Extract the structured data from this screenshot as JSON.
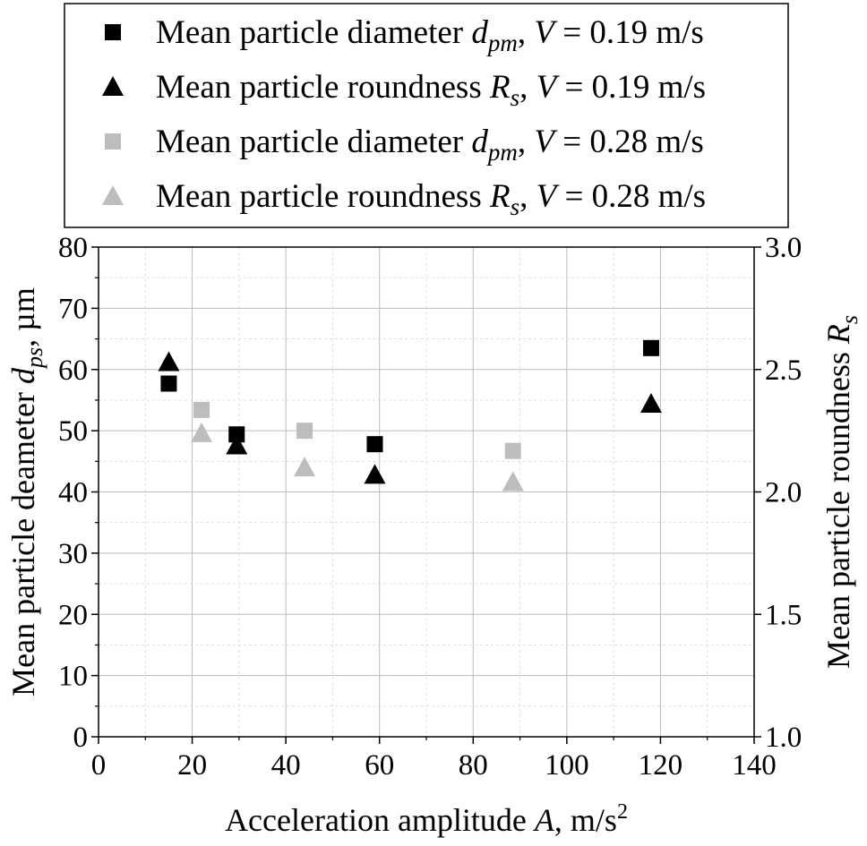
{
  "chart_data": {
    "type": "scatter",
    "xlabel": "Acceleration amplitude A, m/s2",
    "xlabel_parts": [
      "Acceleration amplitude ",
      "A",
      ", m/s",
      "2"
    ],
    "ylabel_left": "Mean particle deameter dps, µm",
    "ylabel_left_parts": [
      "Mean particle deameter ",
      "d",
      "ps",
      ", µm"
    ],
    "ylabel_right": "Mean particle roundness Rs",
    "ylabel_right_parts": [
      "Mean particle roundness ",
      "R",
      "s"
    ],
    "xlim": [
      0,
      140
    ],
    "ylim_left": [
      0,
      80
    ],
    "ylim_right": [
      1.0,
      3.0
    ],
    "x_ticks": [
      0,
      20,
      40,
      60,
      80,
      100,
      120,
      140
    ],
    "y_left_ticks": [
      0,
      10,
      20,
      30,
      40,
      50,
      60,
      70,
      80
    ],
    "y_right_ticks": [
      "1.0",
      "1.5",
      "2.0",
      "2.5",
      "3.0"
    ],
    "grid": "major and minor",
    "legend_position": "top",
    "series": [
      {
        "name": "Mean particle diameter dpm, V = 0.19 m/s",
        "legend_parts": [
          "Mean particle diameter ",
          "d",
          "pm",
          ", ",
          "V",
          " = 0.19 m/s"
        ],
        "marker": "square",
        "color": "#000000",
        "axis": "left",
        "points": [
          [
            15,
            57.7
          ],
          [
            29.5,
            49.4
          ],
          [
            59,
            47.8
          ],
          [
            118,
            63.5
          ]
        ]
      },
      {
        "name": "Mean particle roundness Rs, V = 0.19 m/s",
        "legend_parts": [
          "Mean particle roundness ",
          "R",
          "s",
          ",  ",
          "V",
          " = 0.19 m/s"
        ],
        "marker": "triangle",
        "color": "#000000",
        "axis": "right",
        "points": [
          [
            15,
            2.53
          ],
          [
            29.5,
            2.19
          ],
          [
            59,
            2.07
          ],
          [
            118,
            2.36
          ]
        ]
      },
      {
        "name": "Mean particle diameter dpm, V = 0.28 m/s",
        "legend_parts": [
          "Mean particle diameter ",
          "d",
          "pm",
          ", ",
          "V",
          " = 0.28 m/s"
        ],
        "marker": "square",
        "color": "#bdbdbd",
        "axis": "left",
        "points": [
          [
            22,
            53.4
          ],
          [
            44,
            50
          ],
          [
            88.5,
            46.7
          ]
        ]
      },
      {
        "name": "Mean particle roundness Rs, V = 0.28 m/s",
        "legend_parts": [
          "Mean particle roundness ",
          "R",
          "s",
          ",  ",
          "V",
          " = 0.28 m/s"
        ],
        "marker": "triangle",
        "color": "#bdbdbd",
        "axis": "right",
        "points": [
          [
            22,
            2.24
          ],
          [
            44,
            2.1
          ],
          [
            88.5,
            2.04
          ]
        ]
      }
    ]
  }
}
